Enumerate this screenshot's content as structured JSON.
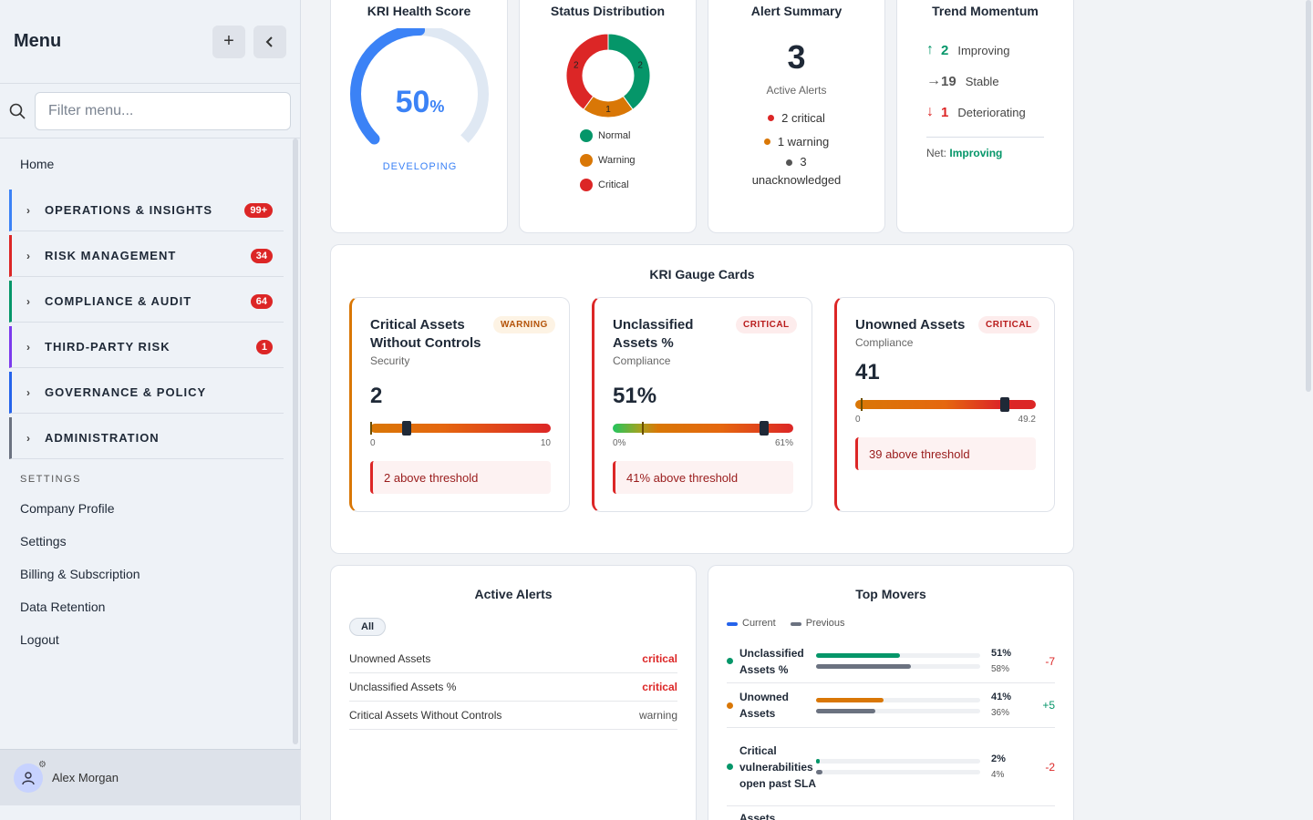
{
  "sidebar": {
    "title": "Menu",
    "search_placeholder": "Filter menu...",
    "home": "Home",
    "groups": [
      {
        "label": "OPERATIONS & INSIGHTS",
        "badge": "99+",
        "color": "#3b82f6"
      },
      {
        "label": "RISK MANAGEMENT",
        "badge": "34",
        "color": "#dc2626"
      },
      {
        "label": "COMPLIANCE & AUDIT",
        "badge": "64",
        "color": "#059669"
      },
      {
        "label": "THIRD-PARTY RISK",
        "badge": "1",
        "color": "#7c3aed"
      },
      {
        "label": "GOVERNANCE & POLICY",
        "badge": "",
        "color": "#2563eb"
      },
      {
        "label": "ADMINISTRATION",
        "badge": "",
        "color": "#6b7280"
      }
    ],
    "settings_header": "SETTINGS",
    "settings": [
      "Company Profile",
      "Settings",
      "Billing & Subscription",
      "Data Retention",
      "Logout"
    ],
    "user": "Alex Morgan"
  },
  "health": {
    "title": "KRI Health Score",
    "value": "50",
    "unit": "%",
    "status": "DEVELOPING",
    "fraction": 0.5
  },
  "status_dist": {
    "title": "Status Distribution",
    "segments": [
      {
        "label": "Normal",
        "count": 2,
        "color": "#059669"
      },
      {
        "label": "Warning",
        "count": 1,
        "color": "#d97706"
      },
      {
        "label": "Critical",
        "count": 2,
        "color": "#dc2626"
      }
    ]
  },
  "alert_summary": {
    "title": "Alert Summary",
    "count": "3",
    "caption": "Active Alerts",
    "critical": "2 critical",
    "warning": "1 warning",
    "unack_count": "3",
    "unack_label": "unacknowledged"
  },
  "trend": {
    "title": "Trend Momentum",
    "improving_num": "2",
    "improving_label": "Improving",
    "stable_num": "19",
    "stable_label": "Stable",
    "deteriorating_num": "1",
    "deteriorating_label": "Deteriorating",
    "net_label": "Net:",
    "net_value": "Improving"
  },
  "gauges": {
    "title": "KRI Gauge Cards",
    "items": [
      {
        "name": "Critical Assets Without Controls",
        "category": "Security",
        "status": "WARNING",
        "value": "2",
        "min": "0",
        "max": "10",
        "fraction": 0.2,
        "threshold_text": "2 above threshold"
      },
      {
        "name": "Unclassified Assets %",
        "category": "Compliance",
        "status": "CRITICAL",
        "value": "51%",
        "min": "0%",
        "max": "61%",
        "fraction": 0.84,
        "threshold_text": "41% above threshold"
      },
      {
        "name": "Unowned Assets",
        "category": "Compliance",
        "status": "CRITICAL",
        "value": "41",
        "min": "0",
        "max": "49.2",
        "fraction": 0.83,
        "threshold_text": "39 above threshold"
      }
    ]
  },
  "active_alerts": {
    "title": "Active Alerts",
    "filter": "All",
    "rows": [
      {
        "name": "Unowned Assets",
        "level": "critical"
      },
      {
        "name": "Unclassified Assets %",
        "level": "critical"
      },
      {
        "name": "Critical Assets Without Controls",
        "level": "warning"
      }
    ]
  },
  "top_movers": {
    "title": "Top Movers",
    "legend_current": "Current",
    "legend_previous": "Previous",
    "rows": [
      {
        "name": "Unclassified Assets %",
        "current": "51%",
        "previous": "58%",
        "cur_frac": 0.51,
        "prev_frac": 0.58,
        "delta": "-7",
        "color": "#059669",
        "delta_color": "#dc2626"
      },
      {
        "name": "Unowned Assets",
        "current": "41%",
        "previous": "36%",
        "cur_frac": 0.41,
        "prev_frac": 0.36,
        "delta": "+5",
        "color": "#d97706",
        "delta_color": "#059669"
      },
      {
        "name": "Critical vulnerabilities open past SLA",
        "current": "2%",
        "previous": "4%",
        "cur_frac": 0.02,
        "prev_frac": 0.04,
        "delta": "-2",
        "color": "#059669",
        "delta_color": "#dc2626"
      }
    ],
    "next_row_name": "Assets"
  }
}
